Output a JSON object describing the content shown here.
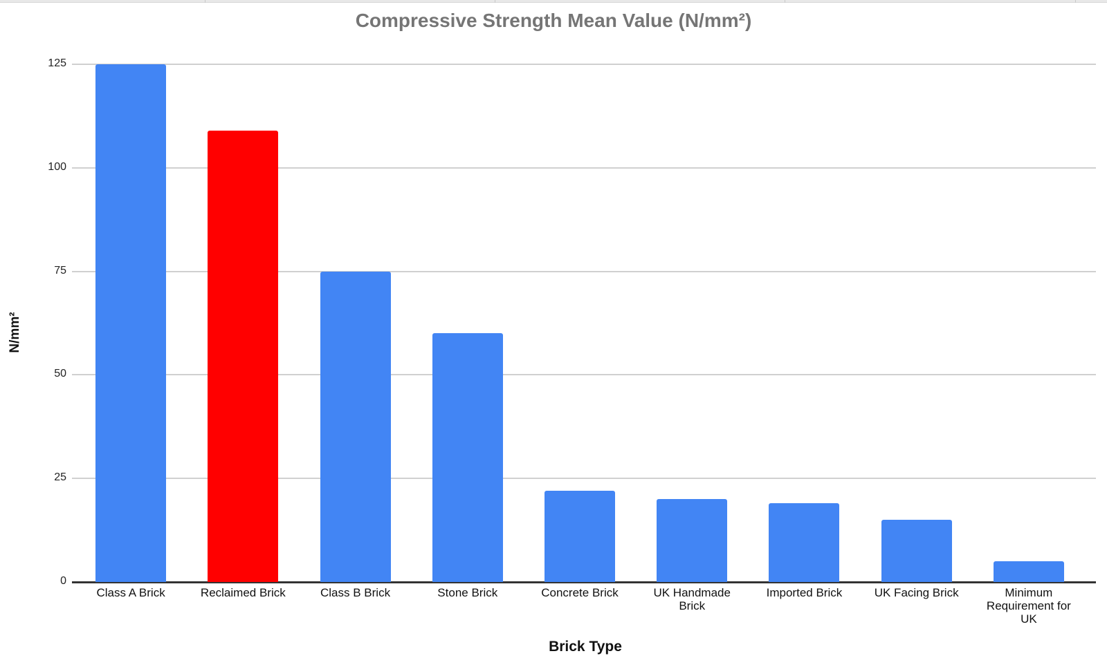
{
  "chart_data": {
    "type": "bar",
    "title": "Compressive Strength Mean Value (N/mm²)",
    "xlabel": "Brick Type",
    "ylabel": "N/mm²",
    "ylim": [
      0,
      125
    ],
    "yticks": [
      "0",
      "25",
      "50",
      "75",
      "100",
      "125"
    ],
    "grid": true,
    "legend": "none",
    "categories": [
      "Class A Brick",
      "Reclaimed Brick",
      "Class B Brick",
      "Stone Brick",
      "Concrete Brick",
      "UK Handmade Brick",
      "Imported Brick",
      "UK Facing Brick",
      "Minimum Requirement for UK"
    ],
    "values": [
      125,
      109,
      75,
      60,
      22,
      20,
      19,
      15,
      5
    ],
    "bar_colors": [
      "#4285f4",
      "#ff0000",
      "#4285f4",
      "#4285f4",
      "#4285f4",
      "#4285f4",
      "#4285f4",
      "#4285f4",
      "#4285f4"
    ]
  },
  "labels": {
    "title": "Compressive Strength Mean Value (N/mm²)",
    "xlabel": "Brick Type",
    "ylabel": "N/mm²",
    "yticks": [
      "0",
      "25",
      "50",
      "75",
      "100",
      "125"
    ],
    "categories": [
      "Class A Brick",
      "Reclaimed Brick",
      "Class B Brick",
      "Stone Brick",
      "Concrete Brick",
      "UK Handmade Brick",
      "Imported Brick",
      "UK Facing Brick",
      "Minimum Requirement for UK"
    ]
  },
  "colors": {
    "primary": "#4285f4",
    "highlight": "#ff0000",
    "grid": "#d0d0d0",
    "title": "#757575"
  }
}
